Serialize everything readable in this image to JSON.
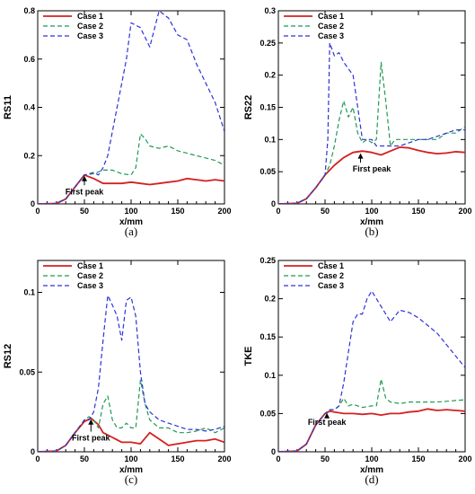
{
  "figure": {
    "colors": {
      "case1": "#d42020",
      "case2": "#1f9a55",
      "case3": "#2d33d8",
      "axis": "#000000"
    }
  },
  "chart_data": [
    {
      "type": "line",
      "caption": "(a)",
      "ylabel": "RS11",
      "xlabel": "x/mm",
      "xlim": [
        0,
        200
      ],
      "ylim": [
        0,
        0.8
      ],
      "xticks": [
        0,
        50,
        100,
        150,
        200
      ],
      "yticks": [
        0,
        0.2,
        0.4,
        0.6,
        0.8
      ],
      "ytick_labels": [
        "0",
        "0.2",
        "0.4",
        "0.6",
        "0.8"
      ],
      "grid": false,
      "legend": "top-left",
      "annotation": {
        "text": "First peak",
        "x": 50,
        "y": 0.12,
        "text_x": 50,
        "text_y": 0.04
      },
      "series": [
        {
          "name": "Case 1",
          "style": "solid",
          "x": [
            0,
            20,
            30,
            40,
            50,
            60,
            70,
            80,
            90,
            100,
            110,
            120,
            130,
            140,
            150,
            160,
            170,
            180,
            190,
            200
          ],
          "y": [
            0,
            0.002,
            0.02,
            0.07,
            0.12,
            0.105,
            0.085,
            0.085,
            0.085,
            0.09,
            0.085,
            0.08,
            0.085,
            0.09,
            0.095,
            0.105,
            0.1,
            0.095,
            0.1,
            0.095
          ]
        },
        {
          "name": "Case 2",
          "style": "dashed",
          "x": [
            0,
            20,
            30,
            40,
            50,
            60,
            70,
            80,
            90,
            100,
            105,
            110,
            115,
            120,
            130,
            140,
            150,
            160,
            170,
            180,
            190,
            200
          ],
          "y": [
            0,
            0.002,
            0.02,
            0.07,
            0.12,
            0.125,
            0.14,
            0.14,
            0.125,
            0.12,
            0.15,
            0.29,
            0.27,
            0.24,
            0.23,
            0.24,
            0.22,
            0.21,
            0.2,
            0.19,
            0.18,
            0.16
          ]
        },
        {
          "name": "Case 3",
          "style": "dashed",
          "x": [
            0,
            20,
            30,
            40,
            50,
            60,
            65,
            70,
            75,
            80,
            85,
            90,
            95,
            100,
            110,
            120,
            130,
            140,
            150,
            160,
            170,
            180,
            190,
            200
          ],
          "y": [
            0,
            0.002,
            0.02,
            0.07,
            0.12,
            0.13,
            0.12,
            0.15,
            0.2,
            0.3,
            0.4,
            0.5,
            0.6,
            0.75,
            0.73,
            0.65,
            0.8,
            0.77,
            0.7,
            0.68,
            0.58,
            0.5,
            0.42,
            0.3
          ]
        }
      ]
    },
    {
      "type": "line",
      "caption": "(b)",
      "ylabel": "RS22",
      "xlabel": "x/mm",
      "xlim": [
        0,
        200
      ],
      "ylim": [
        0,
        0.3
      ],
      "xticks": [
        0,
        50,
        100,
        150,
        200
      ],
      "yticks": [
        0,
        0.05,
        0.1,
        0.15,
        0.2,
        0.25,
        0.3
      ],
      "ytick_labels": [
        "0",
        "0.05",
        "0.1",
        "0.15",
        "0.2",
        "0.25",
        "0.3"
      ],
      "grid": false,
      "legend": "top-left",
      "annotation": {
        "text": "First peak",
        "x": 88,
        "y": 0.08,
        "text_x": 100,
        "text_y": 0.05
      },
      "series": [
        {
          "name": "Case 1",
          "style": "solid",
          "x": [
            0,
            20,
            30,
            40,
            50,
            60,
            70,
            80,
            90,
            100,
            110,
            120,
            130,
            140,
            150,
            160,
            170,
            180,
            190,
            200
          ],
          "y": [
            0,
            0.001,
            0.008,
            0.025,
            0.045,
            0.06,
            0.072,
            0.08,
            0.082,
            0.08,
            0.076,
            0.082,
            0.088,
            0.087,
            0.083,
            0.08,
            0.078,
            0.079,
            0.081,
            0.08
          ]
        },
        {
          "name": "Case 2",
          "style": "dashed",
          "x": [
            0,
            20,
            30,
            40,
            50,
            55,
            60,
            65,
            70,
            75,
            80,
            85,
            90,
            95,
            100,
            105,
            110,
            115,
            120,
            125,
            130,
            140,
            150,
            160,
            170,
            180,
            190,
            200
          ],
          "y": [
            0,
            0.001,
            0.008,
            0.025,
            0.045,
            0.06,
            0.09,
            0.13,
            0.16,
            0.135,
            0.15,
            0.11,
            0.095,
            0.1,
            0.095,
            0.1,
            0.22,
            0.16,
            0.09,
            0.1,
            0.1,
            0.1,
            0.1,
            0.1,
            0.1,
            0.11,
            0.11,
            0.12
          ]
        },
        {
          "name": "Case 3",
          "style": "dashed",
          "x": [
            0,
            20,
            30,
            40,
            50,
            53,
            55,
            60,
            65,
            70,
            75,
            80,
            85,
            90,
            95,
            100,
            105,
            110,
            120,
            130,
            140,
            150,
            160,
            170,
            180,
            190,
            200
          ],
          "y": [
            0,
            0.001,
            0.008,
            0.025,
            0.045,
            0.1,
            0.25,
            0.23,
            0.235,
            0.22,
            0.21,
            0.2,
            0.15,
            0.1,
            0.1,
            0.1,
            0.09,
            0.09,
            0.09,
            0.09,
            0.095,
            0.1,
            0.1,
            0.105,
            0.11,
            0.115,
            0.115
          ]
        }
      ]
    },
    {
      "type": "line",
      "caption": "(c)",
      "ylabel": "RS12",
      "xlabel": "x/mm",
      "xlim": [
        0,
        200
      ],
      "ylim": [
        0,
        0.12
      ],
      "xticks": [
        0,
        50,
        100,
        150,
        200
      ],
      "yticks": [
        0,
        0.05,
        0.1
      ],
      "ytick_labels": [
        "0",
        "0.05",
        "0.1"
      ],
      "grid": false,
      "legend": "top-left",
      "annotation": {
        "text": "First peak",
        "x": 57,
        "y": 0.021,
        "text_x": 57,
        "text_y": 0.007
      },
      "series": [
        {
          "name": "Case 1",
          "style": "solid",
          "x": [
            0,
            20,
            30,
            40,
            50,
            57,
            65,
            70,
            80,
            90,
            100,
            110,
            120,
            130,
            140,
            150,
            160,
            170,
            180,
            190,
            200
          ],
          "y": [
            0,
            0.0005,
            0.004,
            0.012,
            0.019,
            0.021,
            0.017,
            0.012,
            0.009,
            0.006,
            0.006,
            0.005,
            0.012,
            0.008,
            0.004,
            0.005,
            0.006,
            0.007,
            0.007,
            0.008,
            0.006
          ]
        },
        {
          "name": "Case 2",
          "style": "dashed",
          "x": [
            0,
            20,
            30,
            40,
            50,
            55,
            60,
            65,
            70,
            75,
            80,
            85,
            90,
            95,
            100,
            105,
            110,
            115,
            120,
            130,
            140,
            150,
            160,
            170,
            180,
            190,
            200
          ],
          "y": [
            0,
            0.0005,
            0.004,
            0.012,
            0.02,
            0.022,
            0.02,
            0.015,
            0.03,
            0.035,
            0.02,
            0.015,
            0.015,
            0.018,
            0.015,
            0.015,
            0.045,
            0.03,
            0.02,
            0.015,
            0.015,
            0.012,
            0.012,
            0.013,
            0.015,
            0.012,
            0.015
          ]
        },
        {
          "name": "Case 3",
          "style": "dashed",
          "x": [
            0,
            20,
            30,
            40,
            50,
            55,
            60,
            65,
            70,
            75,
            80,
            85,
            90,
            95,
            100,
            105,
            110,
            115,
            120,
            130,
            140,
            150,
            160,
            170,
            180,
            190,
            200
          ],
          "y": [
            0,
            0.0005,
            0.004,
            0.012,
            0.02,
            0.02,
            0.025,
            0.04,
            0.07,
            0.098,
            0.092,
            0.085,
            0.07,
            0.095,
            0.097,
            0.085,
            0.05,
            0.03,
            0.025,
            0.02,
            0.018,
            0.016,
            0.014,
            0.014,
            0.013,
            0.014,
            0.016
          ]
        }
      ]
    },
    {
      "type": "line",
      "caption": "(d)",
      "ylabel": "TKE",
      "xlabel": "x/mm",
      "xlim": [
        0,
        200
      ],
      "ylim": [
        0,
        0.25
      ],
      "xticks": [
        0,
        50,
        100,
        150,
        200
      ],
      "yticks": [
        0,
        0.05,
        0.1,
        0.15,
        0.2,
        0.25
      ],
      "ytick_labels": [
        "0",
        "0.05",
        "0.1",
        "0.15",
        "0.2",
        "0.25"
      ],
      "grid": false,
      "legend": "top-left",
      "annotation": {
        "text": "First peak",
        "x": 52,
        "y": 0.052,
        "text_x": 52,
        "text_y": 0.035
      },
      "series": [
        {
          "name": "Case 1",
          "style": "solid",
          "x": [
            0,
            20,
            30,
            40,
            50,
            55,
            60,
            70,
            80,
            90,
            100,
            110,
            120,
            130,
            140,
            150,
            160,
            170,
            180,
            190,
            200
          ],
          "y": [
            0,
            0.001,
            0.01,
            0.035,
            0.05,
            0.053,
            0.052,
            0.05,
            0.05,
            0.049,
            0.05,
            0.048,
            0.05,
            0.05,
            0.052,
            0.053,
            0.056,
            0.054,
            0.055,
            0.054,
            0.053
          ]
        },
        {
          "name": "Case 2",
          "style": "dashed",
          "x": [
            0,
            20,
            30,
            40,
            50,
            55,
            60,
            65,
            70,
            75,
            80,
            90,
            100,
            105,
            110,
            115,
            120,
            130,
            140,
            150,
            160,
            170,
            180,
            190,
            200
          ],
          "y": [
            0,
            0.001,
            0.01,
            0.035,
            0.05,
            0.055,
            0.055,
            0.06,
            0.07,
            0.06,
            0.062,
            0.058,
            0.06,
            0.06,
            0.095,
            0.07,
            0.065,
            0.063,
            0.065,
            0.065,
            0.065,
            0.065,
            0.066,
            0.067,
            0.068
          ]
        },
        {
          "name": "Case 3",
          "style": "dashed",
          "x": [
            0,
            20,
            30,
            40,
            50,
            55,
            60,
            65,
            70,
            75,
            80,
            85,
            90,
            95,
            100,
            105,
            110,
            115,
            120,
            130,
            140,
            150,
            160,
            170,
            180,
            190,
            200
          ],
          "y": [
            0,
            0.001,
            0.01,
            0.035,
            0.05,
            0.055,
            0.055,
            0.06,
            0.09,
            0.13,
            0.17,
            0.18,
            0.18,
            0.2,
            0.21,
            0.2,
            0.19,
            0.18,
            0.17,
            0.185,
            0.182,
            0.175,
            0.165,
            0.155,
            0.14,
            0.125,
            0.11
          ]
        }
      ]
    }
  ]
}
